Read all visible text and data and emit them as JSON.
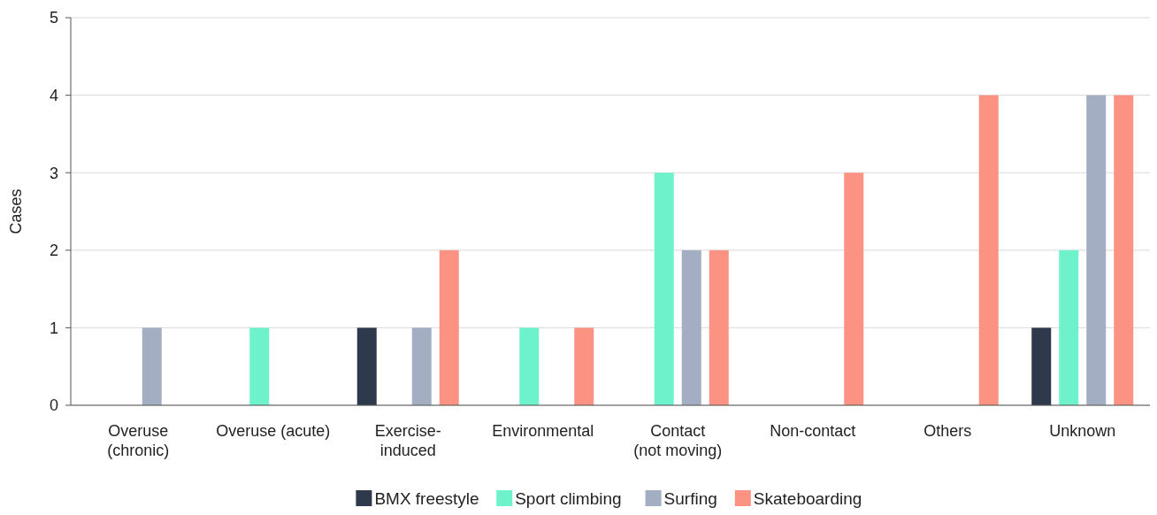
{
  "chart_data": {
    "type": "bar",
    "ylabel": "Cases",
    "categories": [
      "Overuse\n(chronic)",
      "Overuse (acute)",
      "Exercise-\ninduced",
      "Environmental",
      "Contact\n(not moving)",
      "Non-contact",
      "Others",
      "Unknown"
    ],
    "series": [
      {
        "name": "BMX freestyle",
        "color": "#2e3a4b",
        "values": [
          null,
          null,
          1,
          null,
          null,
          null,
          null,
          1
        ]
      },
      {
        "name": "Sport climbing",
        "color": "#6ef2cc",
        "values": [
          null,
          1,
          null,
          1,
          3,
          null,
          null,
          2
        ]
      },
      {
        "name": "Surfing",
        "color": "#a3aec3",
        "values": [
          1,
          null,
          1,
          null,
          2,
          null,
          null,
          4
        ]
      },
      {
        "name": "Skateboarding",
        "color": "#fc9282",
        "values": [
          null,
          null,
          2,
          1,
          2,
          3,
          4,
          4
        ]
      }
    ],
    "ylim": [
      0,
      5
    ],
    "yticks": [
      0,
      1,
      2,
      3,
      4,
      5
    ],
    "grid": "y",
    "legend": "bottom"
  }
}
